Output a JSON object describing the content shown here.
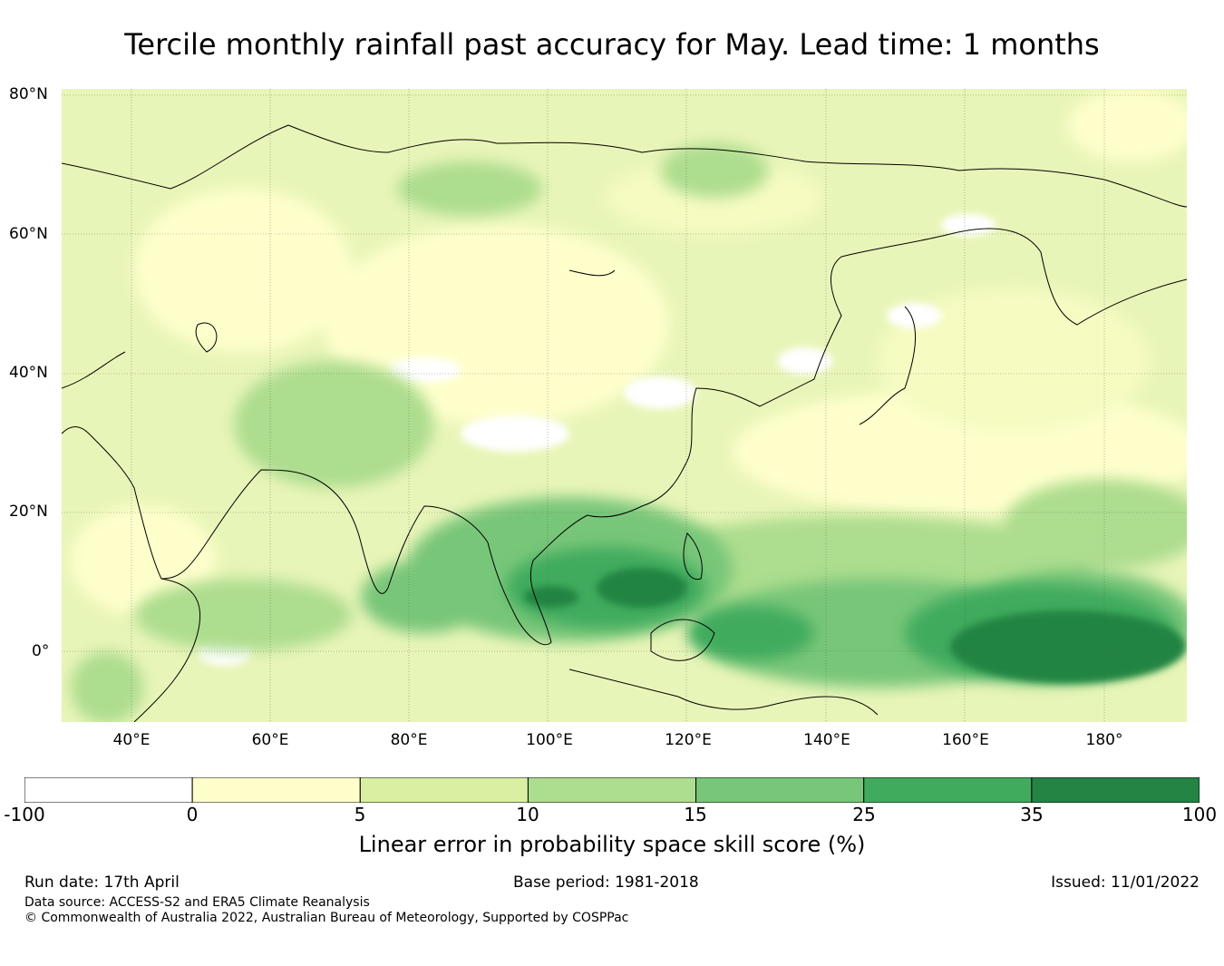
{
  "title": "Tercile monthly rainfall past accuracy for May. Lead time: 1 months",
  "map": {
    "projection": "equirectangular",
    "lon_range": [
      30,
      192
    ],
    "lat_range": [
      -10,
      81
    ],
    "lat_labels": [
      "80°N",
      "60°N",
      "40°N",
      "20°N",
      "0°"
    ],
    "lon_labels": [
      "40°E",
      "60°E",
      "80°E",
      "100°E",
      "120°E",
      "140°E",
      "160°E",
      "180°"
    ],
    "gridlines": true,
    "field": "Linear error in probability space skill score (%)"
  },
  "colorbar": {
    "label": "Linear error in probability space skill score (%)",
    "tick_labels": [
      "-100",
      "0",
      "5",
      "10",
      "15",
      "25",
      "35",
      "100"
    ],
    "bins": [
      {
        "from": -100,
        "to": 0,
        "color": "#ffffff"
      },
      {
        "from": 0,
        "to": 5,
        "color": "#ffffcc"
      },
      {
        "from": 5,
        "to": 10,
        "color": "#d9f0a3"
      },
      {
        "from": 10,
        "to": 15,
        "color": "#addd8e"
      },
      {
        "from": 15,
        "to": 25,
        "color": "#78c679"
      },
      {
        "from": 25,
        "to": 35,
        "color": "#41ab5d"
      },
      {
        "from": 35,
        "to": 100,
        "color": "#238443"
      }
    ]
  },
  "footer": {
    "run_date": "Run date: 17th April",
    "base_period": "Base period: 1981-2018",
    "issued": "Issued: 11/01/2022",
    "data_source": "Data source: ACCESS-S2 and ERA5 Climate Reanalysis",
    "copyright": "© Commonwealth of Australia 2022, Australian Bureau of Meteorology, Supported by COSPPac"
  }
}
